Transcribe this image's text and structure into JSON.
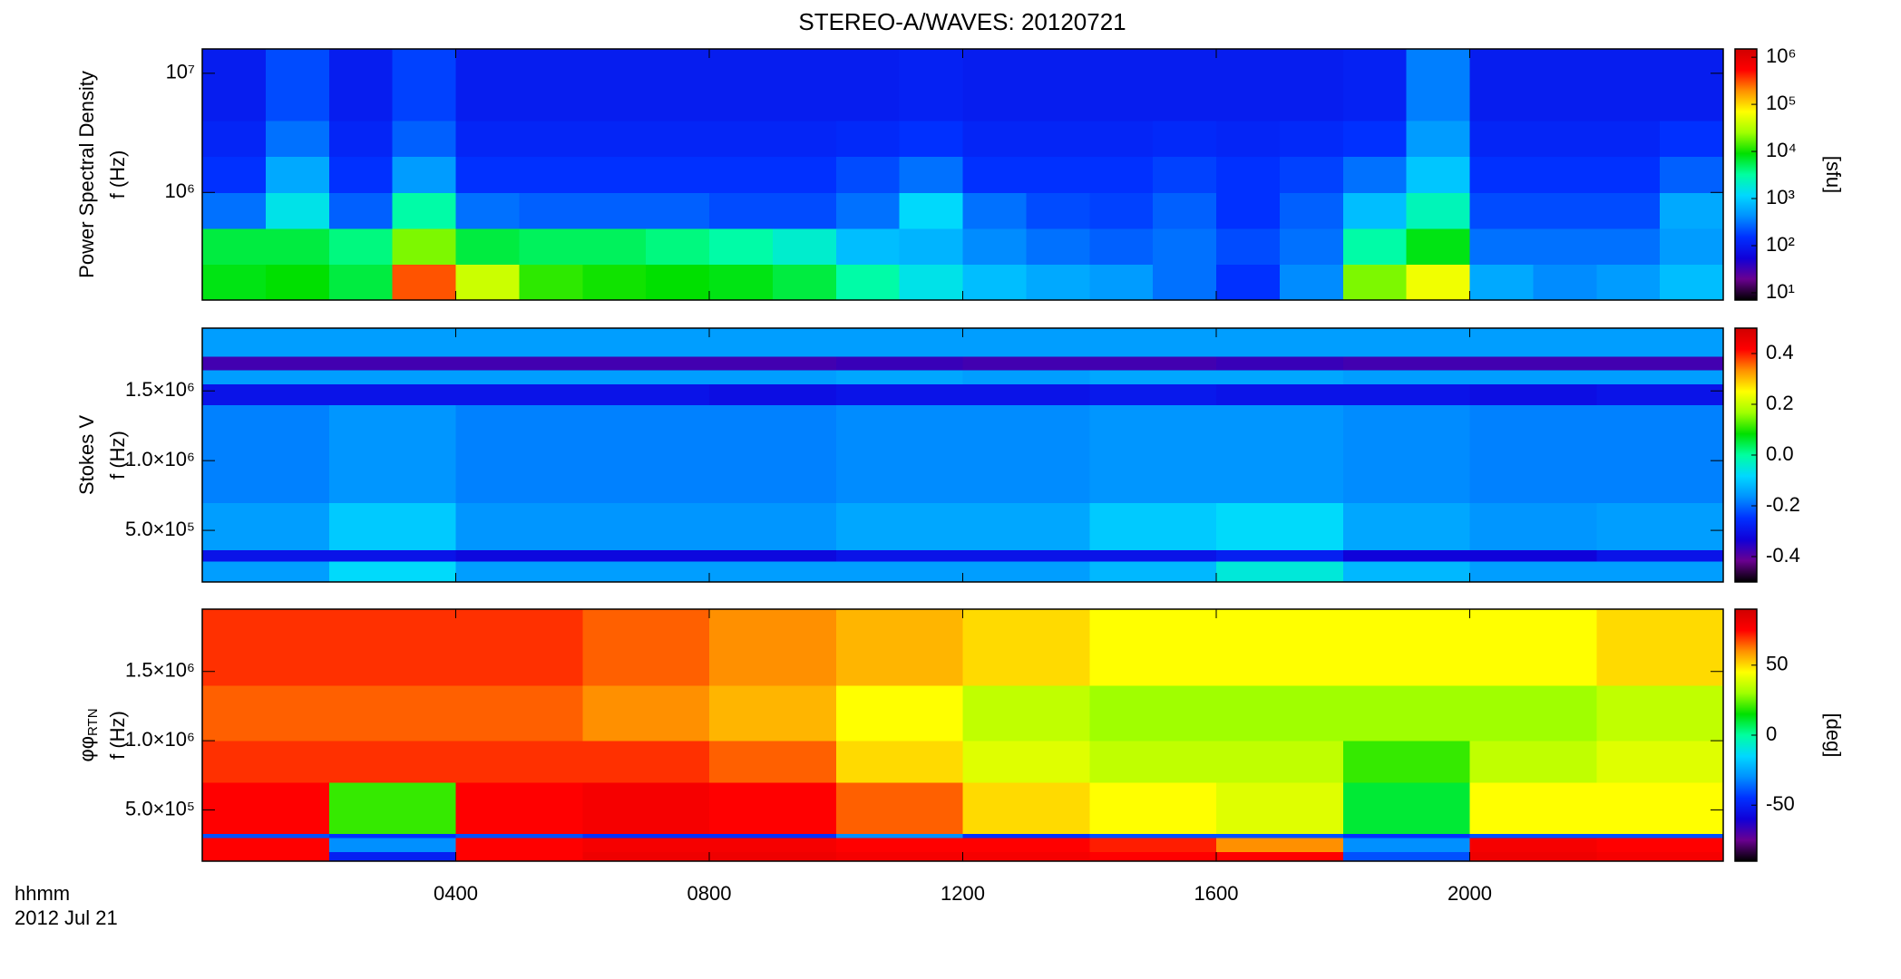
{
  "title": "STEREO-A/WAVES: 20120721",
  "x_axis": {
    "label": "hhmm",
    "date": "2012 Jul 21",
    "xlim": [
      0,
      24
    ],
    "xticks": [
      {
        "value": 4,
        "label": "0400"
      },
      {
        "value": 8,
        "label": "0800"
      },
      {
        "value": 12,
        "label": "1200"
      },
      {
        "value": 16,
        "label": "1600"
      },
      {
        "value": 20,
        "label": "2000"
      }
    ]
  },
  "colormap": [
    "#000000",
    "#6a0090",
    "#1000d8",
    "#0030ff",
    "#0090ff",
    "#00d8ff",
    "#00ffa0",
    "#00e000",
    "#a0ff00",
    "#ffff00",
    "#ff9000",
    "#ff0000",
    "#d00000"
  ],
  "chart_data": [
    {
      "type": "heatmap",
      "quantity": "Power Spectral Density",
      "ylabel": "f (Hz)",
      "ylog": true,
      "zlog": true,
      "ylim": [
        125000,
        16000000
      ],
      "yticks": [
        {
          "value": 1000000,
          "label": "10⁶"
        },
        {
          "value": 10000000,
          "label": "10⁷"
        }
      ],
      "zlim": [
        7,
        1500000
      ],
      "zticks": [
        {
          "value": 10,
          "label": "10¹"
        },
        {
          "value": 100,
          "label": "10²"
        },
        {
          "value": 1000,
          "label": "10³"
        },
        {
          "value": 10000,
          "label": "10⁴"
        },
        {
          "value": 100000,
          "label": "10⁵"
        },
        {
          "value": 1000000,
          "label": "10⁶"
        }
      ],
      "zlabel": "[sfu]",
      "xbins": [
        0,
        1,
        2,
        3,
        4,
        5,
        6,
        7,
        8,
        9,
        10,
        11,
        12,
        13,
        14,
        15,
        16,
        17,
        18,
        19,
        20,
        21,
        22,
        23,
        24
      ],
      "ybins": [
        125000,
        250000,
        500000,
        1000000,
        2000000,
        4000000,
        16000000
      ],
      "z": [
        [
          8000,
          9000,
          6000,
          300000,
          40000,
          12000,
          10000,
          9000,
          8000,
          6000,
          3000,
          1500,
          800,
          600,
          500,
          300,
          150,
          400,
          20000,
          60000,
          600,
          400,
          500,
          800
        ],
        [
          6000,
          6000,
          4000,
          20000,
          6000,
          5000,
          5000,
          4000,
          3000,
          2000,
          800,
          700,
          400,
          300,
          250,
          300,
          200,
          300,
          3000,
          8000,
          300,
          300,
          300,
          500
        ],
        [
          300,
          1500,
          250,
          3000,
          300,
          250,
          250,
          250,
          200,
          200,
          300,
          1200,
          300,
          200,
          180,
          250,
          150,
          250,
          800,
          2500,
          200,
          200,
          200,
          600
        ],
        [
          150,
          600,
          150,
          500,
          150,
          150,
          150,
          150,
          150,
          150,
          200,
          300,
          150,
          150,
          150,
          180,
          150,
          180,
          300,
          900,
          150,
          150,
          150,
          250
        ],
        [
          120,
          300,
          120,
          250,
          120,
          120,
          120,
          120,
          120,
          120,
          130,
          150,
          120,
          120,
          120,
          130,
          120,
          130,
          150,
          500,
          120,
          120,
          120,
          150
        ],
        [
          100,
          200,
          100,
          180,
          100,
          100,
          100,
          100,
          100,
          100,
          100,
          110,
          100,
          100,
          100,
          100,
          100,
          100,
          110,
          350,
          100,
          100,
          100,
          100
        ]
      ]
    },
    {
      "type": "heatmap",
      "quantity": "Stokes V",
      "ylabel": "f (Hz)",
      "ylog": false,
      "zlog": false,
      "ylim": [
        130000,
        1950000
      ],
      "yticks": [
        {
          "value": 500000,
          "label": "5.0×10⁵"
        },
        {
          "value": 1000000,
          "label": "1.0×10⁶"
        },
        {
          "value": 1500000,
          "label": "1.5×10⁶"
        }
      ],
      "zlim": [
        -0.5,
        0.5
      ],
      "zticks": [
        -0.4,
        -0.2,
        {
          "value": 0,
          "label": "0.0"
        },
        0.2,
        0.4
      ],
      "xbins": [
        0,
        2,
        4,
        6,
        8,
        10,
        12,
        14,
        16,
        18,
        20,
        22,
        24
      ],
      "ybins": [
        130000,
        280000,
        360000,
        700000,
        1400000,
        1550000,
        1650000,
        1750000,
        1950000
      ],
      "z": [
        [
          -0.15,
          -0.08,
          -0.15,
          -0.15,
          -0.15,
          -0.15,
          -0.15,
          -0.12,
          -0.05,
          -0.12,
          -0.15,
          -0.15
        ],
        [
          -0.3,
          -0.3,
          -0.32,
          -0.32,
          -0.32,
          -0.3,
          -0.3,
          -0.3,
          -0.28,
          -0.33,
          -0.33,
          -0.3
        ],
        [
          -0.15,
          -0.1,
          -0.16,
          -0.16,
          -0.16,
          -0.14,
          -0.14,
          -0.1,
          -0.08,
          -0.14,
          -0.16,
          -0.15
        ],
        [
          -0.18,
          -0.16,
          -0.18,
          -0.18,
          -0.18,
          -0.17,
          -0.17,
          -0.16,
          -0.16,
          -0.17,
          -0.18,
          -0.18
        ],
        [
          -0.3,
          -0.3,
          -0.3,
          -0.3,
          -0.31,
          -0.3,
          -0.3,
          -0.29,
          -0.3,
          -0.3,
          -0.31,
          -0.3
        ],
        [
          -0.15,
          -0.15,
          -0.15,
          -0.15,
          -0.15,
          -0.14,
          -0.15,
          -0.14,
          -0.14,
          -0.15,
          -0.15,
          -0.15
        ],
        [
          -0.38,
          -0.38,
          -0.38,
          -0.38,
          -0.38,
          -0.37,
          -0.38,
          -0.38,
          -0.37,
          -0.38,
          -0.38,
          -0.38
        ],
        [
          -0.15,
          -0.15,
          -0.15,
          -0.15,
          -0.15,
          -0.15,
          -0.15,
          -0.15,
          -0.15,
          -0.15,
          -0.15,
          -0.15
        ]
      ]
    },
    {
      "type": "heatmap",
      "quantity": "φ",
      "quantity_sub": "RTN",
      "ylabel": "f (Hz)",
      "ylog": false,
      "zlog": false,
      "ylim": [
        130000,
        1950000
      ],
      "yticks": [
        {
          "value": 500000,
          "label": "5.0×10⁵"
        },
        {
          "value": 1000000,
          "label": "1.0×10⁶"
        },
        {
          "value": 1500000,
          "label": "1.5×10⁶"
        }
      ],
      "zlim": [
        -90,
        90
      ],
      "zticks": [
        -50,
        0,
        50
      ],
      "zlabel": "[deg]",
      "xbins": [
        0,
        2,
        4,
        6,
        8,
        10,
        12,
        14,
        16,
        18,
        20,
        22,
        24
      ],
      "ybins": [
        130000,
        200000,
        300000,
        330000,
        700000,
        1000000,
        1400000,
        1950000
      ],
      "z": [
        [
          75,
          -50,
          75,
          80,
          80,
          78,
          78,
          75,
          75,
          -40,
          80,
          78
        ],
        [
          75,
          -30,
          75,
          78,
          78,
          75,
          75,
          72,
          60,
          -30,
          78,
          75
        ],
        [
          -40,
          -45,
          -40,
          -45,
          -45,
          -30,
          -45,
          -40,
          -40,
          -45,
          -40,
          -40
        ],
        [
          75,
          20,
          75,
          78,
          75,
          65,
          50,
          45,
          40,
          10,
          45,
          45
        ],
        [
          70,
          70,
          70,
          70,
          65,
          50,
          40,
          35,
          35,
          20,
          35,
          40
        ],
        [
          65,
          65,
          65,
          60,
          55,
          45,
          35,
          30,
          30,
          30,
          30,
          35
        ],
        [
          70,
          70,
          70,
          65,
          60,
          55,
          50,
          45,
          45,
          45,
          45,
          50
        ]
      ]
    }
  ]
}
